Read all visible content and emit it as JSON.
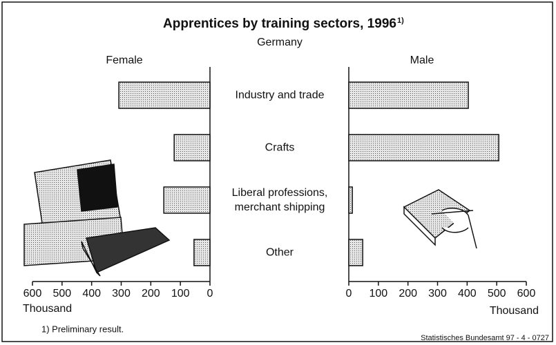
{
  "chart_data": {
    "type": "butterfly-bar",
    "title": "Apprentices by training sectors, 1996",
    "title_note": "1)",
    "subtitle": "Germany",
    "categories": [
      "Industry and trade",
      "Crafts",
      "Liberal professions, merchant shipping",
      "Other"
    ],
    "series": [
      {
        "name": "Female",
        "color": "#c4c4c4",
        "values": [
          308,
          121,
          156,
          54
        ]
      },
      {
        "name": "Male",
        "color": "#c4c4c4",
        "values": [
          404,
          507,
          12,
          47
        ]
      }
    ],
    "xlim": [
      0,
      600
    ],
    "xticks": [
      0,
      100,
      200,
      300,
      400,
      500,
      600
    ],
    "xlabel": "Thousand",
    "footnote": "1) Preliminary result.",
    "source": "Statistisches Bundesamt 97 - 4 - 0727"
  }
}
